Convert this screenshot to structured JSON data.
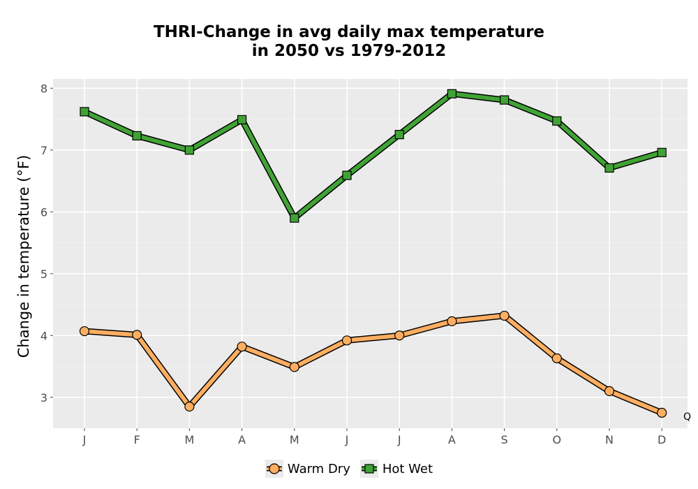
{
  "chart_data": {
    "type": "line",
    "title_line1": "THRI-Change in avg daily max temperature",
    "title_line2": "in 2050 vs 1979-2012",
    "xlabel": "",
    "ylabel": "Change in temperature (°F)",
    "categories": [
      "J",
      "F",
      "M",
      "A",
      "M",
      "J",
      "J",
      "A",
      "S",
      "O",
      "N",
      "D"
    ],
    "ylim": [
      2.5,
      8.15
    ],
    "yticks": [
      3,
      4,
      5,
      6,
      7,
      8
    ],
    "grid": true,
    "legend_position": "bottom",
    "annotation": "Q",
    "series": [
      {
        "name": "Warm Dry",
        "color": "#fdae61",
        "marker": "circle",
        "values": [
          4.07,
          4.01,
          2.85,
          3.82,
          3.49,
          3.92,
          4.0,
          4.23,
          4.32,
          3.63,
          3.1,
          2.75
        ]
      },
      {
        "name": "Hot Wet",
        "color": "#41a336",
        "marker": "square",
        "values": [
          7.62,
          7.23,
          7.0,
          7.49,
          5.9,
          6.59,
          7.25,
          7.91,
          7.81,
          7.47,
          6.71,
          6.96
        ]
      }
    ]
  }
}
